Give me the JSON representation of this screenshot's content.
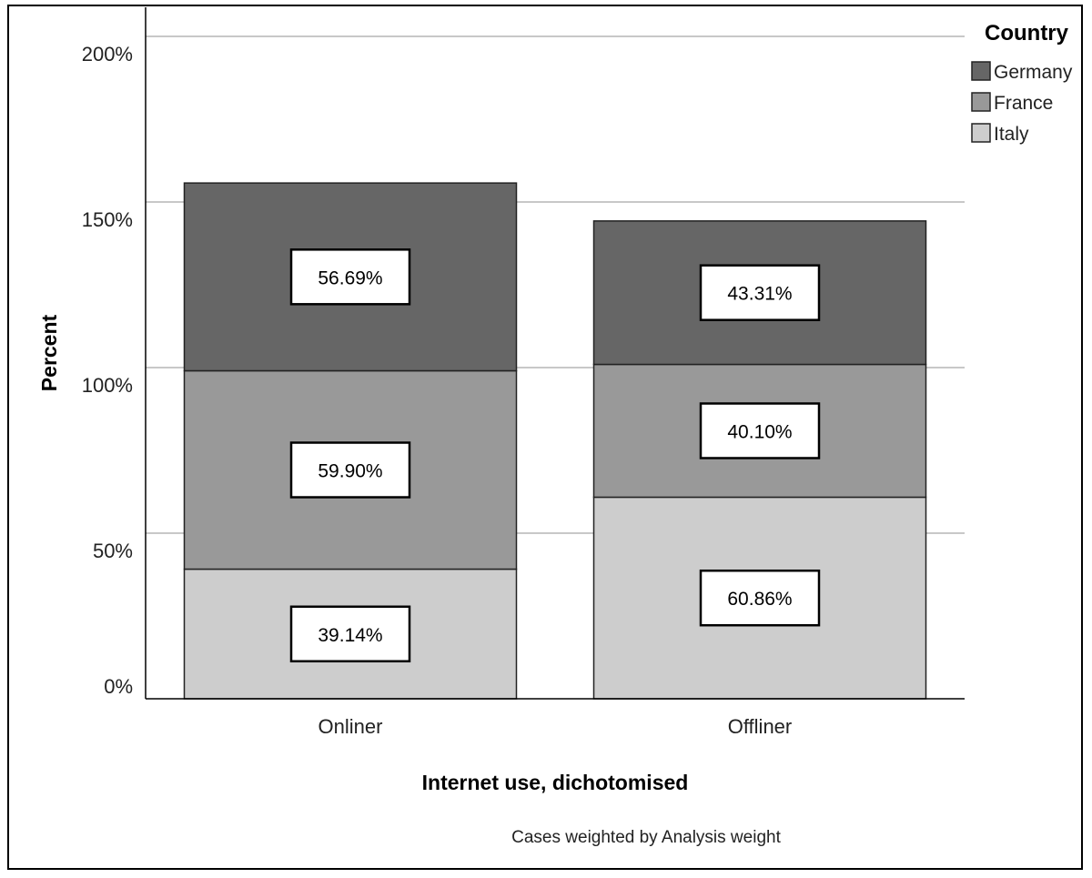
{
  "chart_data": {
    "type": "bar",
    "stacked": true,
    "categories": [
      "Onliner",
      "Offliner"
    ],
    "series": [
      {
        "name": "Italy",
        "values": [
          39.14,
          60.86
        ],
        "labels": [
          "39.14%",
          "60.86%"
        ],
        "color": "#cdcdcd"
      },
      {
        "name": "France",
        "values": [
          59.9,
          40.1
        ],
        "labels": [
          "59.90%",
          "40.10%"
        ],
        "color": "#999999"
      },
      {
        "name": "Germany",
        "values": [
          56.69,
          43.31
        ],
        "labels": [
          "56.69%",
          "43.31%"
        ],
        "color": "#666666"
      }
    ],
    "legend_order": [
      "Germany",
      "France",
      "Italy"
    ],
    "legend_title": "Country",
    "ylim": [
      0,
      200
    ],
    "yticks": [
      0,
      50,
      100,
      150,
      200
    ],
    "ytick_labels": [
      "0%",
      "50%",
      "100%",
      "150%",
      "200%"
    ],
    "xlabel": "Internet use, dichotomised",
    "ylabel": "Percent",
    "footnote": "Cases weighted by Analysis weight",
    "legend_position": "top-right",
    "grid": true
  }
}
